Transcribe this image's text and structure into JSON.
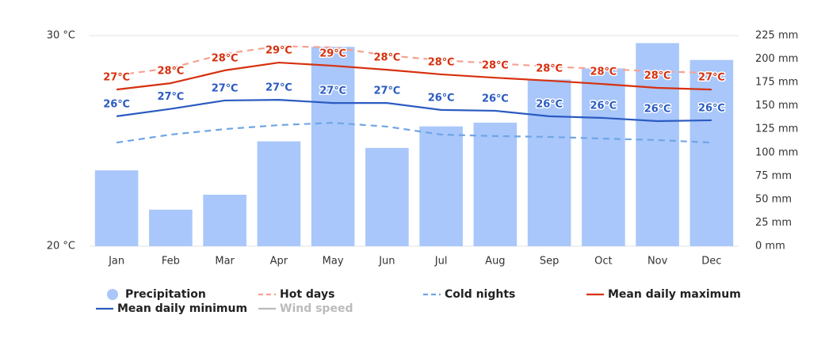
{
  "chart_data": {
    "type": "bar",
    "categories": [
      "Jan",
      "Feb",
      "Mar",
      "Apr",
      "May",
      "Jun",
      "Jul",
      "Aug",
      "Sep",
      "Oct",
      "Nov",
      "Dec"
    ],
    "ylim": [
      20,
      30
    ],
    "yticks": [
      {
        "value": 20,
        "label": "20 °C"
      },
      {
        "value": 30,
        "label": "30 °C"
      }
    ],
    "y2lim": [
      0,
      225
    ],
    "y2ticks": [
      {
        "value": 0,
        "label": "0 mm"
      },
      {
        "value": 25,
        "label": "25 mm"
      },
      {
        "value": 50,
        "label": "50 mm"
      },
      {
        "value": 75,
        "label": "75 mm"
      },
      {
        "value": 100,
        "label": "100 mm"
      },
      {
        "value": 125,
        "label": "125 mm"
      },
      {
        "value": 150,
        "label": "150 mm"
      },
      {
        "value": 175,
        "label": "175 mm"
      },
      {
        "value": 200,
        "label": "200 mm"
      },
      {
        "value": 225,
        "label": "225 mm"
      }
    ],
    "grid": true,
    "legend": "bottom",
    "series": [
      {
        "name": "Precipitation",
        "type": "bar",
        "axis": "y2",
        "color": "#a9c7fb",
        "values": [
          81,
          39,
          55,
          112,
          213,
          105,
          128,
          132,
          178,
          190,
          217,
          199
        ]
      },
      {
        "name": "Hot days",
        "type": "line",
        "dashed": true,
        "color": "#f5a291",
        "values": [
          28.12,
          28.46,
          29.14,
          29.5,
          29.44,
          29.06,
          28.83,
          28.68,
          28.53,
          28.42,
          28.3,
          28.23
        ]
      },
      {
        "name": "Cold nights",
        "type": "line",
        "dashed": true,
        "color": "#6fa5e5",
        "values": [
          24.92,
          25.3,
          25.56,
          25.75,
          25.86,
          25.68,
          25.3,
          25.23,
          25.19,
          25.11,
          25.04,
          24.92
        ]
      },
      {
        "name": "Mean daily maximum",
        "type": "line",
        "color": "#d6310f",
        "values": [
          27.44,
          27.74,
          28.35,
          28.72,
          28.57,
          28.38,
          28.16,
          28.0,
          27.86,
          27.7,
          27.52,
          27.44
        ],
        "value_labels": [
          "27℃",
          "28℃",
          "28℃",
          "29℃",
          "29℃",
          "28℃",
          "28℃",
          "28℃",
          "28℃",
          "28℃",
          "28℃",
          "27℃"
        ]
      },
      {
        "name": "Mean daily minimum",
        "type": "line",
        "color": "#2b5bc1",
        "values": [
          26.17,
          26.52,
          26.92,
          26.95,
          26.8,
          26.8,
          26.47,
          26.43,
          26.17,
          26.09,
          25.94,
          25.98
        ],
        "value_labels": [
          "26℃",
          "27℃",
          "27℃",
          "27℃",
          "27℃",
          "27℃",
          "26℃",
          "26℃",
          "26℃",
          "26℃",
          "26℃",
          "26℃"
        ]
      },
      {
        "name": "Wind speed",
        "type": "line",
        "color": "#aaaaaa",
        "visible": false,
        "values": [
          null,
          null,
          null,
          null,
          null,
          null,
          null,
          null,
          null,
          null,
          null,
          null
        ]
      }
    ]
  }
}
